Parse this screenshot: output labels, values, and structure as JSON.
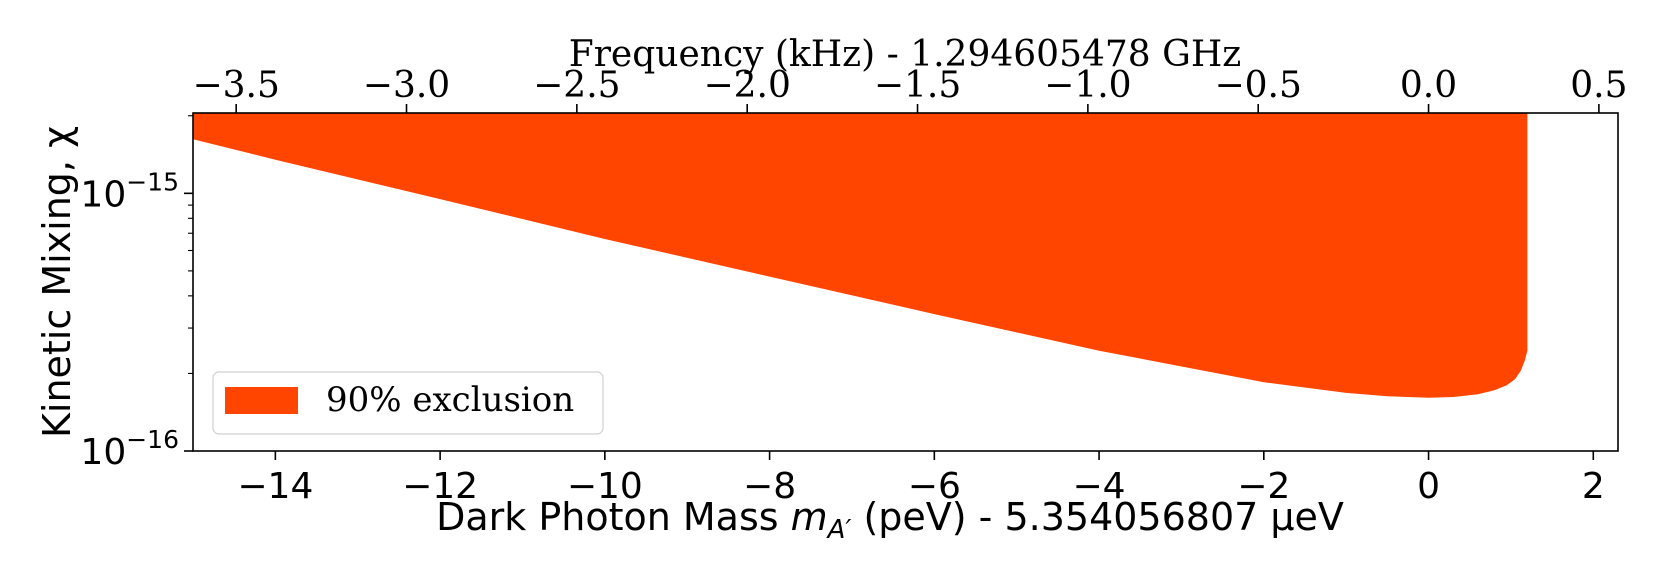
{
  "chart_data": {
    "type": "area",
    "title": "",
    "xlabel_prefix": "Dark Photon Mass ",
    "xlabel_symbol": "m",
    "xlabel_subscript": "A′",
    "xlabel_suffix": " (peV) - 5.354056807 μeV",
    "ylabel": "Kinetic Mixing, χ",
    "top_xlabel": "Frequency (kHz) - 1.294605478 GHz",
    "xlim": [
      -15.0,
      2.3
    ],
    "ylim": [
      1e-16,
      2.05e-15
    ],
    "yscale": "log",
    "x_ticks": [
      -14,
      -12,
      -10,
      -8,
      -6,
      -4,
      -2,
      0,
      2
    ],
    "x_tick_labels": [
      "−14",
      "−12",
      "−10",
      "−8",
      "−6",
      "−4",
      "−2",
      "0",
      "2"
    ],
    "top_ticks": [
      -3.5,
      -3.0,
      -2.5,
      -2.0,
      -1.5,
      -1.0,
      -0.5,
      0.0,
      0.5
    ],
    "top_tick_labels": [
      "−3.5",
      "−3.0",
      "−2.5",
      "−2.0",
      "−1.5",
      "−1.0",
      "−0.5",
      "0.0",
      "0.5"
    ],
    "top_kHz_per_peV": 0.24178,
    "y_ticks": [
      {
        "value": 1e-15,
        "base": "10",
        "exp": "−15"
      },
      {
        "value": 1e-16,
        "base": "10",
        "exp": "−16"
      }
    ],
    "series": [
      {
        "name": "90% exclusion",
        "color": "#ff4500",
        "x_max": 1.2,
        "upper_fill_to": "top-of-axes",
        "lower_x": [
          -15.0,
          -14,
          -12,
          -10,
          -8,
          -6,
          -4,
          -2,
          -1,
          -0.5,
          0,
          0.3,
          0.6,
          0.8,
          0.95,
          1.05,
          1.12,
          1.17,
          1.2
        ],
        "lower_y": [
          1.62e-15,
          1.35e-15,
          9.5e-16,
          6.65e-16,
          4.75e-16,
          3.4e-16,
          2.45e-16,
          1.85e-16,
          1.68e-16,
          1.63e-16,
          1.61e-16,
          1.62e-16,
          1.66e-16,
          1.72e-16,
          1.8e-16,
          1.9e-16,
          2.05e-16,
          2.25e-16,
          2.45e-16
        ]
      }
    ],
    "legend": {
      "location": "lower-left",
      "entries": [
        "90% exclusion"
      ]
    }
  }
}
